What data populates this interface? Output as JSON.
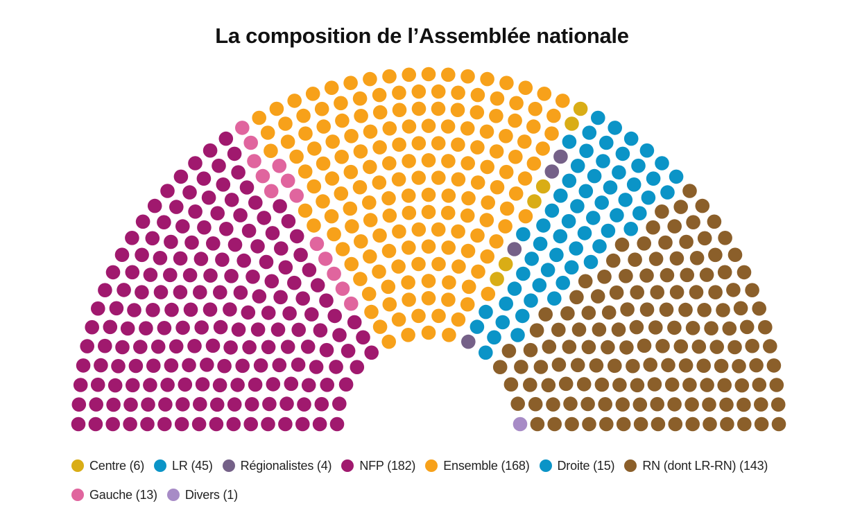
{
  "title": "La composition de l’Assemblée nationale",
  "chart_data": {
    "type": "parliament",
    "title": "La composition de l’Assemblée nationale",
    "total_seats": 577,
    "series": [
      {
        "name": "NFP",
        "label": "NFP (182)",
        "value": 182,
        "color": "#a0196e"
      },
      {
        "name": "Gauche",
        "label": "Gauche (13)",
        "value": 13,
        "color": "#e0659e"
      },
      {
        "name": "Ensemble",
        "label": "Ensemble (168)",
        "value": 168,
        "color": "#f7a11a"
      },
      {
        "name": "Centre",
        "label": "Centre (6)",
        "value": 6,
        "color": "#d9ad16"
      },
      {
        "name": "Régionalistes",
        "label": "Régionalistes (4)",
        "value": 4,
        "color": "#756188"
      },
      {
        "name": "LR",
        "label": "LR (45)",
        "value": 45,
        "color": "#0b94c7"
      },
      {
        "name": "Droite",
        "label": "Droite (15)",
        "value": 15,
        "color": "#0b94c7"
      },
      {
        "name": "RN",
        "label": "RN (dont LR-RN) (143)",
        "value": 143,
        "color": "#8b5f2a"
      },
      {
        "name": "Divers",
        "label": "Divers (1)",
        "value": 1,
        "color": "#a78bc6"
      }
    ],
    "legend_order": [
      "Centre",
      "LR",
      "Régionalistes",
      "NFP",
      "Ensemble",
      "Droite",
      "RN",
      "Gauche",
      "Divers"
    ],
    "legend_placement": "bottom"
  }
}
